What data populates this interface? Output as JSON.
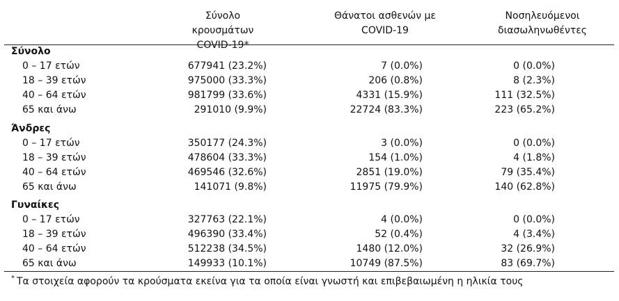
{
  "headers": {
    "col1": [
      "Σύνολο κρουσμάτων",
      "COVID-19*"
    ],
    "col2": [
      "Θάνατοι ασθενών με",
      "COVID-19"
    ],
    "col3": [
      "Νοσηλευόμενοι",
      "διασωληνωθέντες"
    ]
  },
  "groups": [
    {
      "title": "Σύνολο",
      "rows": [
        {
          "label": "0 – 17 ετών",
          "cases": "677941 (23.2%)",
          "deaths": "7 (0.0%)",
          "intubated": "0 (0.0%)"
        },
        {
          "label": "18 – 39 ετών",
          "cases": "975000 (33.3%)",
          "deaths": "206 (0.8%)",
          "intubated": "8 (2.3%)"
        },
        {
          "label": "40 – 64 ετών",
          "cases": "981799 (33.6%)",
          "deaths": "4331 (15.9%)",
          "intubated": "111 (32.5%)"
        },
        {
          "label": "65 και άνω",
          "cases": "291010 (9.9%)",
          "deaths": "22724 (83.3%)",
          "intubated": "223 (65.2%)"
        }
      ]
    },
    {
      "title": "Άνδρες",
      "rows": [
        {
          "label": "0 – 17 ετών",
          "cases": "350177 (24.3%)",
          "deaths": "3 (0.0%)",
          "intubated": "0 (0.0%)"
        },
        {
          "label": "18 – 39 ετών",
          "cases": "478604 (33.3%)",
          "deaths": "154 (1.0%)",
          "intubated": "4 (1.8%)"
        },
        {
          "label": "40 – 64 ετών",
          "cases": "469546 (32.6%)",
          "deaths": "2851 (19.0%)",
          "intubated": "79 (35.4%)"
        },
        {
          "label": "65 και άνω",
          "cases": "141071 (9.8%)",
          "deaths": "11975 (79.9%)",
          "intubated": "140 (62.8%)"
        }
      ]
    },
    {
      "title": "Γυναίκες",
      "rows": [
        {
          "label": "0 – 17 ετών",
          "cases": "327763 (22.1%)",
          "deaths": "4 (0.0%)",
          "intubated": "0 (0.0%)"
        },
        {
          "label": "18 – 39 ετών",
          "cases": "496390 (33.4%)",
          "deaths": "52 (0.4%)",
          "intubated": "4 (3.4%)"
        },
        {
          "label": "40 – 64 ετών",
          "cases": "512238 (34.5%)",
          "deaths": "1480 (12.0%)",
          "intubated": "32 (26.9%)"
        },
        {
          "label": "65 και άνω",
          "cases": "149933 (10.1%)",
          "deaths": "10749 (87.5%)",
          "intubated": "83 (69.7%)"
        }
      ]
    }
  ],
  "footnote": {
    "marker": "*",
    "text": "Τα στοιχεία αφορούν τα κρούσματα εκείνα για τα οποία είναι γνωστή και επιβεβαιωμένη η ηλικία τους"
  }
}
